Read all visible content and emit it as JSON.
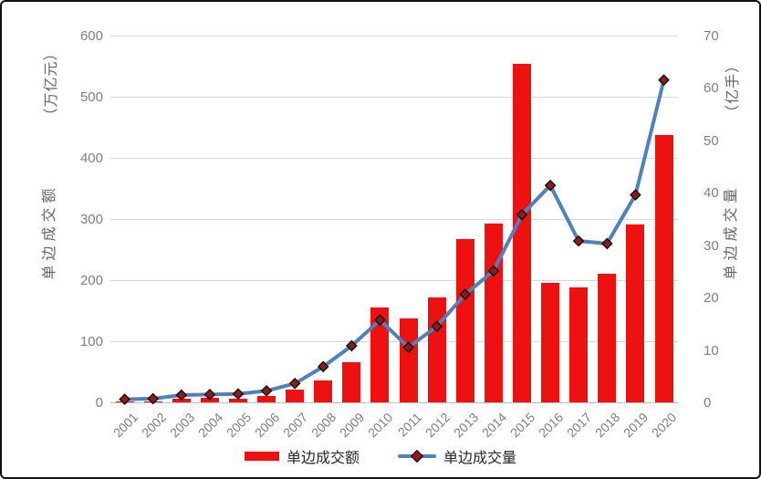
{
  "chart_data": {
    "type": "bar",
    "combo": "bar+line",
    "title": "",
    "categories": [
      "2001",
      "2002",
      "2003",
      "2004",
      "2005",
      "2006",
      "2007",
      "2008",
      "2009",
      "2010",
      "2011",
      "2012",
      "2013",
      "2014",
      "2015",
      "2016",
      "2017",
      "2018",
      "2019",
      "2020"
    ],
    "series": [
      {
        "name": "单边成交额",
        "type": "bar",
        "axis": "left",
        "unit": "万亿元",
        "color": "#ED1111",
        "values": [
          1.5,
          2.0,
          5.4,
          7.3,
          6.7,
          10.5,
          20.5,
          36.0,
          65.2,
          154.9,
          137.5,
          171.1,
          267.5,
          292.0,
          554.2,
          195.6,
          187.9,
          210.8,
          290.6,
          437.5
        ]
      },
      {
        "name": "单边成交量",
        "type": "line",
        "axis": "right",
        "unit": "亿手",
        "color": "#4F81BD",
        "marker": "diamond",
        "marker_color": "#8F1A1A",
        "values": [
          0.6,
          0.7,
          1.4,
          1.5,
          1.6,
          2.2,
          3.6,
          6.8,
          10.8,
          15.7,
          10.5,
          14.5,
          20.6,
          25.1,
          35.8,
          41.4,
          30.8,
          30.3,
          39.6,
          61.5
        ]
      }
    ],
    "left_axis": {
      "title": "单边成交额",
      "unit_label": "（万亿元）",
      "min": 0,
      "max": 600,
      "step": 100,
      "ticks": [
        0,
        100,
        200,
        300,
        400,
        500,
        600
      ]
    },
    "right_axis": {
      "title": "单边成交量",
      "unit_label": "（亿手）",
      "min": 0,
      "max": 70,
      "step": 10,
      "ticks": [
        0,
        10,
        20,
        30,
        40,
        50,
        60,
        70
      ]
    },
    "grid": true,
    "legend_position": "bottom",
    "legend": [
      "单边成交额",
      "单边成交量"
    ],
    "colors": {
      "bar": "#ED1111",
      "line": "#4F81BD",
      "marker": "#8F1A1A",
      "grid": "#D9D9D9",
      "tick_text": "#808080"
    }
  }
}
